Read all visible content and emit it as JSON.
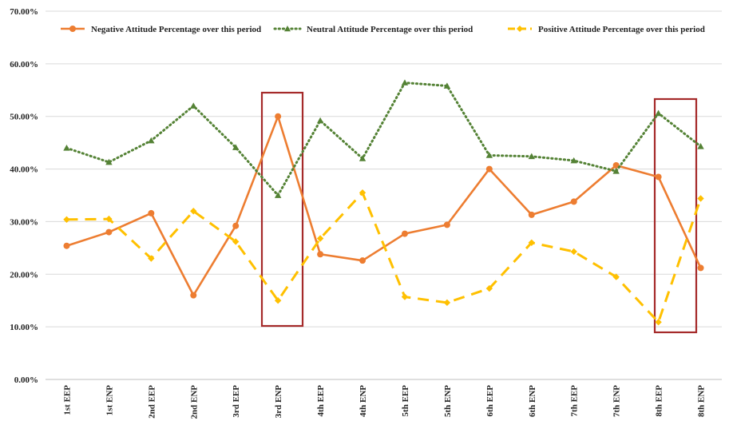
{
  "chart_data": {
    "type": "line",
    "categories": [
      "1st EEP",
      "1st ENP",
      "2nd EEP",
      "2nd ENP",
      "3rd EEP",
      "3rd ENP",
      "4th EEP",
      "4th ENP",
      "5th EEP",
      "5th ENP",
      "6th EEP",
      "6th ENP",
      "7th EEP",
      "7th ENP",
      "8th EEP",
      "8th ENP"
    ],
    "ylim": [
      0,
      70
    ],
    "yticks": [
      "0.00%",
      "10.00%",
      "20.00%",
      "30.00%",
      "40.00%",
      "50.00%",
      "60.00%",
      "70.00%"
    ],
    "ytick_values": [
      0,
      10,
      20,
      30,
      40,
      50,
      60,
      70
    ],
    "grid": true,
    "legend_position": "top",
    "series": [
      {
        "name": "Negative Attitude Percentage over this period",
        "color": "#ED7D31",
        "style": "solid",
        "marker": "circle",
        "values": [
          25.4,
          28.0,
          31.6,
          16.0,
          29.2,
          50.0,
          23.8,
          22.6,
          27.7,
          29.4,
          40.0,
          31.3,
          33.8,
          40.7,
          38.5,
          21.2
        ]
      },
      {
        "name": "Neutral Attitude Percentage over this period",
        "color": "#548235",
        "style": "dotted",
        "marker": "triangle",
        "values": [
          44.0,
          41.3,
          45.4,
          52.0,
          44.1,
          35.0,
          49.2,
          42.0,
          56.4,
          55.8,
          42.6,
          42.4,
          41.6,
          39.6,
          50.6,
          44.3
        ]
      },
      {
        "name": "Positive Attitude  Percentage over this period",
        "color": "#FFC000",
        "style": "dashed",
        "marker": "diamond",
        "values": [
          30.4,
          30.5,
          23.0,
          32.0,
          26.2,
          15.0,
          26.8,
          35.5,
          15.7,
          14.6,
          17.3,
          26.0,
          24.3,
          19.5,
          10.9,
          34.4
        ]
      }
    ],
    "highlights": [
      {
        "category": "3rd ENP",
        "color": "#A52A2A"
      },
      {
        "category": "8th EEP",
        "color": "#A52A2A"
      }
    ]
  }
}
